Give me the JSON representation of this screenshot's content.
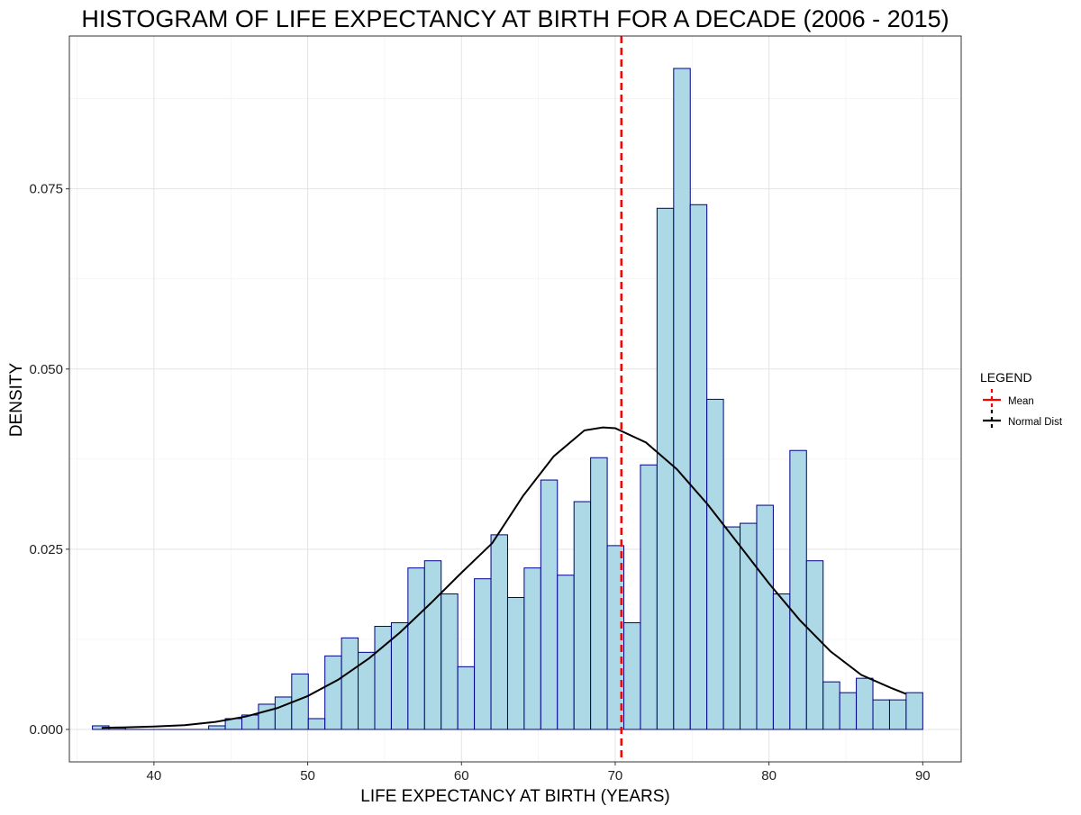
{
  "chart_data": {
    "type": "bar",
    "title": "HISTOGRAM OF LIFE EXPECTANCY AT BIRTH FOR A DECADE (2006 - 2015)",
    "xlabel": "LIFE EXPECTANCY AT BIRTH (YEARS)",
    "ylabel": "DENSITY",
    "xlim": [
      34.5,
      92.5
    ],
    "ylim": [
      -0.0045,
      0.0962
    ],
    "x_ticks": [
      40,
      50,
      60,
      70,
      80,
      90
    ],
    "x_tick_labels": [
      "40",
      "50",
      "60",
      "70",
      "80",
      "90"
    ],
    "y_ticks": [
      0.0,
      0.025,
      0.05,
      0.075
    ],
    "y_tick_labels": [
      "0.000",
      "0.025",
      "0.050",
      "0.075"
    ],
    "grid": true,
    "legend": {
      "title": "LEGEND",
      "placement": "right",
      "entries": [
        {
          "label": "Mean",
          "color": "#ff0000",
          "linestyle": "dashed"
        },
        {
          "label": "Normal Dist",
          "color": "#000000",
          "linestyle": "solid"
        }
      ]
    },
    "histogram": {
      "bin_width": 1.08,
      "bin_start": 36.0,
      "fill_color": "#add8e6",
      "edge_color": "#00008b",
      "densities": [
        0.0005,
        0.0002,
        0.0,
        0.0,
        0.0,
        0.0,
        0.0,
        0.0005,
        0.0015,
        0.002,
        0.0035,
        0.0045,
        0.0077,
        0.0015,
        0.0102,
        0.0127,
        0.0107,
        0.0143,
        0.0148,
        0.0224,
        0.0234,
        0.0188,
        0.0087,
        0.0209,
        0.027,
        0.0183,
        0.0224,
        0.0346,
        0.0214,
        0.0316,
        0.0377,
        0.0255,
        0.0148,
        0.0367,
        0.0723,
        0.0917,
        0.0728,
        0.0458,
        0.0281,
        0.0286,
        0.0311,
        0.0188,
        0.0387,
        0.0234,
        0.0066,
        0.0051,
        0.0071,
        0.0041,
        0.0041,
        0.0051
      ]
    },
    "mean": {
      "x": 70.4,
      "color": "#ff0000",
      "label": "Mean"
    },
    "normal_dist": {
      "label": "Normal Dist",
      "color": "#000000",
      "x": [
        36.6,
        38,
        40,
        42,
        44,
        46,
        48,
        50,
        52,
        54,
        56,
        58,
        60,
        62,
        64,
        66,
        68,
        69.2,
        70,
        72,
        74,
        76,
        78,
        80,
        82,
        84,
        86,
        88,
        88.9
      ],
      "y": [
        0.00022,
        0.00028,
        0.00041,
        0.00059,
        0.00104,
        0.0018,
        0.00295,
        0.00463,
        0.00692,
        0.00988,
        0.01345,
        0.0175,
        0.02174,
        0.02584,
        0.03238,
        0.03789,
        0.04149,
        0.0419,
        0.04179,
        0.03981,
        0.03612,
        0.03125,
        0.02576,
        0.02025,
        0.01517,
        0.01083,
        0.00757,
        0.0057,
        0.00494
      ]
    }
  }
}
